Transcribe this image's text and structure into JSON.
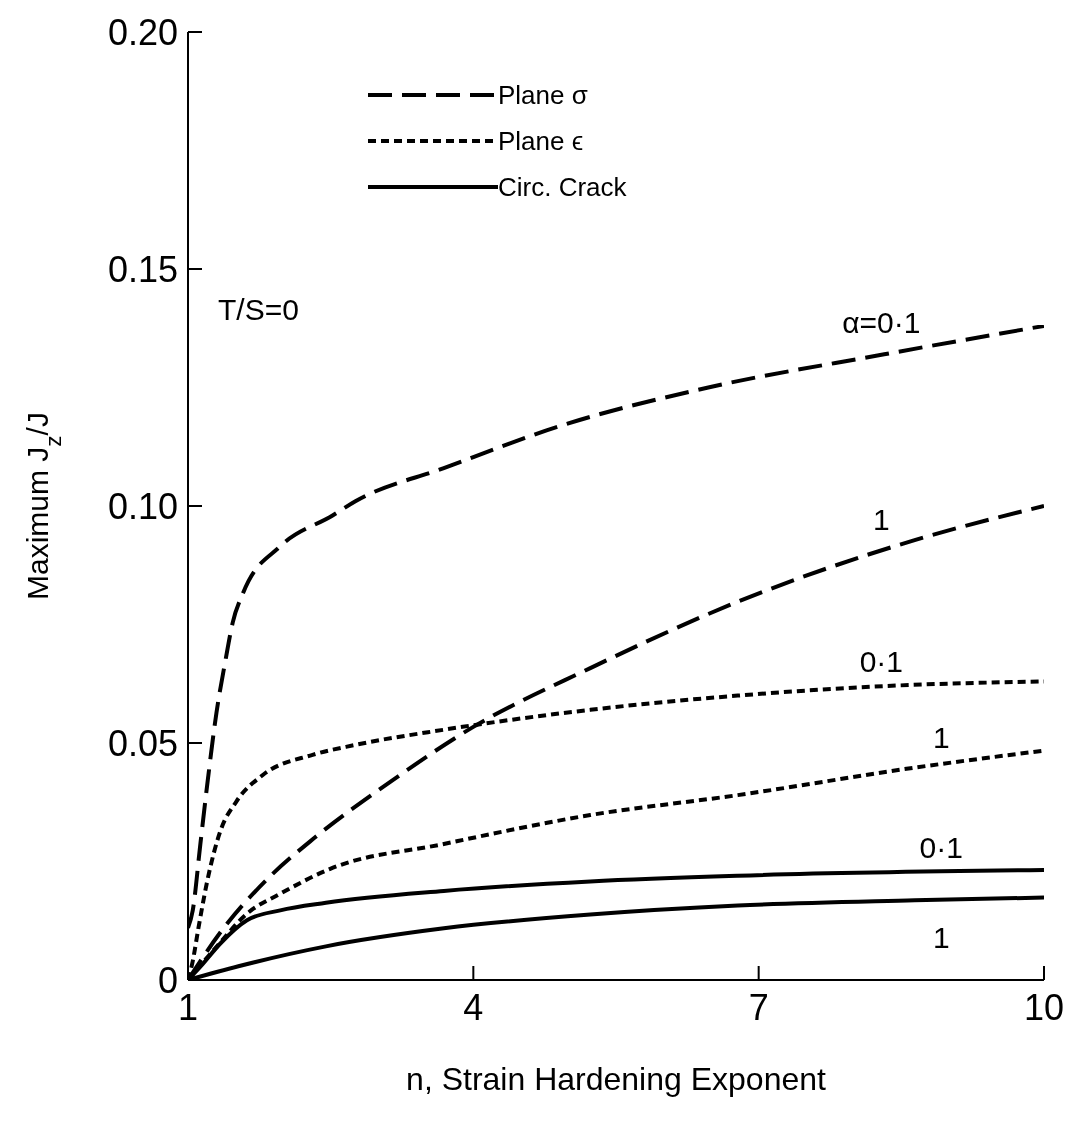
{
  "chart_data": {
    "type": "line",
    "xlabel": "n, Strain Hardening Exponent",
    "ylabel": "Maximum J$_{z}$/J",
    "xlim": [
      1,
      10
    ],
    "xticks": [
      1,
      4,
      7,
      10
    ],
    "ylim": [
      0,
      0.2
    ],
    "yticks": [
      0,
      {
        "value": 0.05,
        "label": "0.05"
      },
      {
        "value": 0.1,
        "label": "0.10"
      },
      {
        "value": 0.15,
        "label": "0.15"
      },
      {
        "value": 0.2,
        "label": "0.20"
      }
    ],
    "legend": "top left",
    "marker": "none",
    "grid": false,
    "series": [
      {
        "name": "Plane σ",
        "color": "#000000",
        "line_style": "dashed",
        "x": [
          1,
          1.05,
          1.13,
          1.21,
          1.3,
          1.39,
          1.47,
          1.58,
          1.97,
          2.52,
          2.76,
          3.69,
          4.93,
          6.47,
          8.32,
          10
        ],
        "values": [
          0.011,
          0.0147,
          0.0287,
          0.0425,
          0.0565,
          0.067,
          0.0754,
          0.0817,
          0.0915,
          0.098,
          0.101,
          0.108,
          0.117,
          0.125,
          0.132,
          0.138
        ]
      },
      {
        "color": "#000000",
        "line_style": "dashed",
        "x": [
          1,
          1.35,
          1.84,
          2.33,
          3.07,
          4,
          5.23,
          6.78,
          8.64,
          10
        ],
        "values": [
          0,
          0.0103,
          0.0214,
          0.03,
          0.041,
          0.0534,
          0.0658,
          0.0798,
          0.0928,
          0.1
        ]
      },
      {
        "name": "Plane ϵ",
        "color": "#000000",
        "line_style": "dotted",
        "x": [
          1,
          1.05,
          1.11,
          1.21,
          1.34,
          1.51,
          1.79,
          2.31,
          2.76,
          3.69,
          5.23,
          6.78,
          8.32,
          10
        ],
        "values": [
          0,
          0.004,
          0.011,
          0.0216,
          0.0314,
          0.0377,
          0.0433,
          0.0475,
          0.0496,
          0.0528,
          0.057,
          0.06,
          0.062,
          0.063
        ]
      },
      {
        "color": "#000000",
        "line_style": "dotted",
        "x": [
          1,
          1.3,
          1.62,
          1.97,
          2.49,
          3.69,
          5.23,
          6.78,
          8.64,
          10
        ],
        "values": [
          0,
          0.007,
          0.014,
          0.0182,
          0.0234,
          0.0287,
          0.0348,
          0.039,
          0.0448,
          0.0484
        ]
      },
      {
        "name": "Circ. Crack",
        "color": "#000000",
        "line_style": "solid",
        "x": [
          1,
          1.13,
          1.34,
          1.62,
          1.97,
          2.45,
          3.69,
          5.23,
          6.78,
          10
        ],
        "values": [
          0,
          0.0028,
          0.0077,
          0.0126,
          0.0147,
          0.0163,
          0.0188,
          0.0208,
          0.022,
          0.0232
        ]
      },
      {
        "color": "#000000",
        "line_style": "solid",
        "x": [
          1,
          1.53,
          2.45,
          3.69,
          5.23,
          6.78,
          8.64,
          10
        ],
        "values": [
          0,
          0.0029,
          0.0071,
          0.0109,
          0.0138,
          0.0157,
          0.0168,
          0.0174
        ]
      }
    ],
    "annotations": [
      "T/S=0",
      "α=0·1",
      "1",
      "0·1",
      "1",
      "0·1",
      "1"
    ]
  }
}
